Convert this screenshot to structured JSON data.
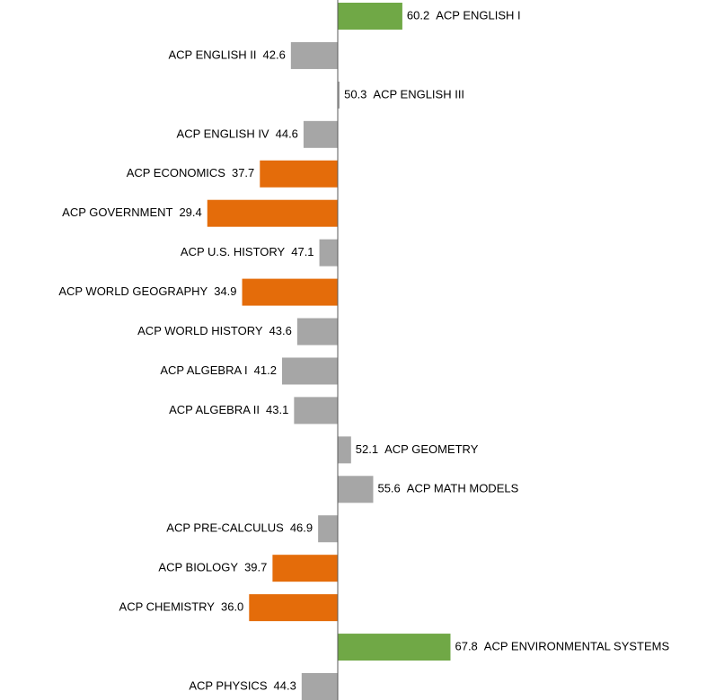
{
  "chart_data": {
    "type": "diverging-bar",
    "categories": [
      "ACP ENGLISH I",
      "ACP ENGLISH II",
      "ACP ENGLISH III",
      "ACP ENGLISH IV",
      "ACP ECONOMICS",
      "ACP GOVERNMENT",
      "ACP U.S. HISTORY",
      "ACP WORLD GEOGRAPHY",
      "ACP WORLD HISTORY",
      "ACP ALGEBRA I",
      "ACP ALGEBRA II",
      "ACP GEOMETRY",
      "ACP MATH MODELS",
      "ACP PRE-CALCULUS",
      "ACP BIOLOGY",
      "ACP CHEMISTRY",
      "ACP ENVIRONMENTAL SYSTEMS",
      "ACP PHYSICS"
    ],
    "values": [
      60.2,
      42.6,
      50.3,
      44.6,
      37.7,
      29.4,
      47.1,
      34.9,
      43.6,
      41.2,
      43.1,
      52.1,
      55.6,
      46.9,
      39.7,
      36.0,
      67.8,
      44.3
    ],
    "value_labels": [
      "60.2",
      "42.6",
      "50.3",
      "44.6",
      "37.7",
      "29.4",
      "47.1",
      "34.9",
      "43.6",
      "41.2",
      "43.1",
      "52.1",
      "55.6",
      "46.9",
      "39.7",
      "36.0",
      "67.8",
      "44.3"
    ],
    "colors": [
      "#70a846",
      "#a6a6a6",
      "#a6a6a6",
      "#a6a6a6",
      "#e46c0a",
      "#e46c0a",
      "#a6a6a6",
      "#e46c0a",
      "#a6a6a6",
      "#a6a6a6",
      "#a6a6a6",
      "#a6a6a6",
      "#a6a6a6",
      "#a6a6a6",
      "#e46c0a",
      "#e46c0a",
      "#70a846",
      "#a6a6a6"
    ],
    "baseline": 50,
    "xlim": [
      0,
      100
    ]
  }
}
